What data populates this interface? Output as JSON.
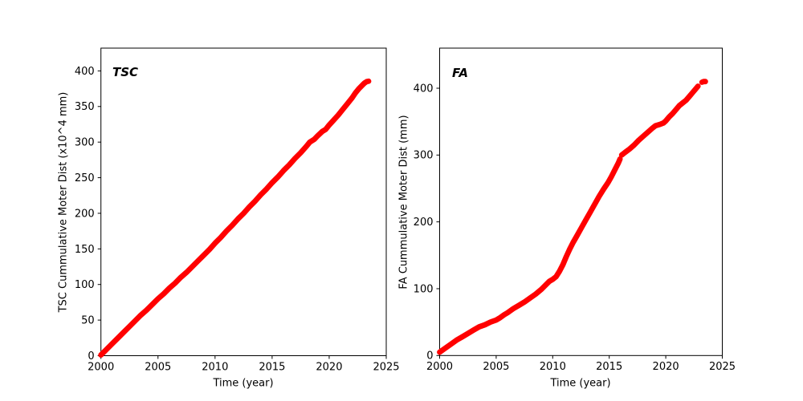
{
  "figure": {
    "background": "#ffffff",
    "axis_color": "#000000",
    "series_color": "#ff0000"
  },
  "chart_data": [
    {
      "type": "scatter",
      "panel": "left",
      "title": "TSC",
      "xlabel": "Time (year)",
      "ylabel": "TSC Cummulative Moter Dist (x10^4 mm)",
      "xlim": [
        2000,
        2025
      ],
      "ylim": [
        0,
        432
      ],
      "xticks": [
        2000,
        2005,
        2010,
        2015,
        2020,
        2025
      ],
      "yticks": [
        0,
        50,
        100,
        150,
        200,
        250,
        300,
        350,
        400
      ],
      "grid": false,
      "legend": "none",
      "color": "#ff0000",
      "series": [
        {
          "name": "TSC cumulative motor distance",
          "segments": [
            [
              [
                2000.0,
                1
              ],
              [
                2000.5,
                9
              ],
              [
                2001.0,
                17
              ],
              [
                2001.5,
                25
              ],
              [
                2002.0,
                33
              ],
              [
                2002.5,
                41
              ],
              [
                2003.0,
                49
              ],
              [
                2003.5,
                57
              ],
              [
                2004.0,
                64
              ],
              [
                2004.5,
                72
              ],
              [
                2005.0,
                80
              ],
              [
                2005.5,
                87
              ],
              [
                2006.0,
                95
              ],
              [
                2006.5,
                102
              ],
              [
                2007.0,
                110
              ],
              [
                2007.5,
                117
              ],
              [
                2008.0,
                125
              ],
              [
                2008.5,
                133
              ],
              [
                2009.0,
                141
              ],
              [
                2009.5,
                149
              ],
              [
                2010.0,
                158
              ],
              [
                2010.5,
                166
              ],
              [
                2011.0,
                175
              ],
              [
                2011.5,
                183
              ],
              [
                2012.0,
                192
              ],
              [
                2012.5,
                200
              ],
              [
                2013.0,
                209
              ],
              [
                2013.5,
                217
              ],
              [
                2014.0,
                226
              ],
              [
                2014.5,
                234
              ],
              [
                2015.0,
                243
              ],
              [
                2015.5,
                251
              ],
              [
                2016.0,
                260
              ],
              [
                2016.5,
                268
              ],
              [
                2017.0,
                277
              ],
              [
                2017.5,
                285
              ],
              [
                2018.0,
                294
              ],
              [
                2018.3,
                300
              ],
              [
                2018.7,
                304
              ],
              [
                2019.0,
                309
              ],
              [
                2019.4,
                315
              ],
              [
                2019.7,
                318
              ],
              [
                2020.0,
                324
              ],
              [
                2020.4,
                331
              ],
              [
                2020.8,
                338
              ],
              [
                2021.2,
                346
              ],
              [
                2021.6,
                354
              ],
              [
                2022.0,
                362
              ],
              [
                2022.3,
                369
              ],
              [
                2022.6,
                375
              ],
              [
                2022.9,
                380
              ],
              [
                2023.1,
                383
              ],
              [
                2023.3,
                385
              ],
              [
                2023.45,
                385.5
              ]
            ]
          ]
        }
      ]
    },
    {
      "type": "scatter",
      "panel": "right",
      "title": "FA",
      "xlabel": "Time (year)",
      "ylabel": "FA Cummulative Moter Dist (mm)",
      "xlim": [
        2000,
        2025
      ],
      "ylim": [
        0,
        460
      ],
      "xticks": [
        2000,
        2005,
        2010,
        2015,
        2020,
        2025
      ],
      "yticks": [
        0,
        100,
        200,
        300,
        400
      ],
      "grid": false,
      "legend": "none",
      "color": "#ff0000",
      "series": [
        {
          "name": "FA cumulative motor distance",
          "segments": [
            [
              [
                2000.0,
                5
              ],
              [
                2000.5,
                11
              ],
              [
                2001.0,
                17
              ],
              [
                2001.5,
                23
              ],
              [
                2002.0,
                28
              ],
              [
                2002.5,
                33
              ],
              [
                2003.0,
                38
              ],
              [
                2003.5,
                43
              ],
              [
                2004.0,
                46
              ],
              [
                2004.5,
                50
              ],
              [
                2005.0,
                53
              ],
              [
                2005.3,
                56
              ],
              [
                2005.7,
                61
              ],
              [
                2006.0,
                64
              ],
              [
                2006.5,
                70
              ],
              [
                2007.0,
                75
              ],
              [
                2007.5,
                80
              ],
              [
                2008.0,
                86
              ],
              [
                2008.5,
                92
              ],
              [
                2009.0,
                99
              ],
              [
                2009.4,
                106
              ],
              [
                2009.7,
                111
              ],
              [
                2010.0,
                114
              ],
              [
                2010.3,
                118
              ],
              [
                2010.6,
                126
              ],
              [
                2010.9,
                136
              ],
              [
                2011.2,
                148
              ],
              [
                2011.5,
                159
              ],
              [
                2011.8,
                169
              ],
              [
                2012.1,
                178
              ],
              [
                2012.5,
                190
              ],
              [
                2012.9,
                202
              ],
              [
                2013.3,
                214
              ],
              [
                2013.7,
                226
              ],
              [
                2014.1,
                238
              ],
              [
                2014.5,
                249
              ],
              [
                2014.9,
                259
              ],
              [
                2015.2,
                268
              ],
              [
                2015.5,
                278
              ],
              [
                2015.8,
                288
              ],
              [
                2015.95,
                294
              ]
            ],
            [
              [
                2016.1,
                300
              ],
              [
                2016.4,
                304
              ],
              [
                2016.8,
                309
              ],
              [
                2017.2,
                315
              ],
              [
                2017.6,
                322
              ],
              [
                2018.0,
                328
              ],
              [
                2018.4,
                334
              ],
              [
                2018.8,
                340
              ],
              [
                2019.1,
                344
              ],
              [
                2019.5,
                346
              ],
              [
                2019.8,
                348
              ],
              [
                2020.0,
                351
              ],
              [
                2020.3,
                357
              ],
              [
                2020.6,
                362
              ],
              [
                2020.9,
                368
              ],
              [
                2021.2,
                374
              ],
              [
                2021.5,
                378
              ],
              [
                2021.8,
                382
              ],
              [
                2022.1,
                388
              ],
              [
                2022.4,
                394
              ],
              [
                2022.6,
                398
              ],
              [
                2022.85,
                403
              ]
            ],
            [
              [
                2023.2,
                409
              ],
              [
                2023.35,
                410
              ],
              [
                2023.5,
                410
              ]
            ]
          ]
        }
      ]
    }
  ]
}
